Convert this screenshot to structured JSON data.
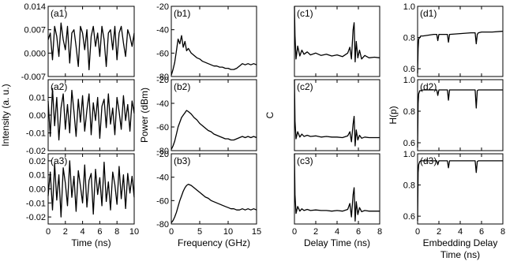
{
  "chart_data": [
    {
      "id": "a",
      "type": "line",
      "ylabel": "Intensity (a. u.)",
      "xlabel": "Time (ns)",
      "xlim": [
        0,
        10
      ],
      "x_ticks": [
        0,
        2,
        4,
        6,
        8,
        10
      ],
      "x_tick_labels": [
        "0",
        "2",
        "4",
        "6",
        "8",
        "10"
      ],
      "panels": [
        {
          "label": "(a1)",
          "ylim": [
            -0.007,
            0.014
          ],
          "y_ticks": [
            -0.007,
            0.0,
            0.007,
            0.014
          ],
          "y_tick_labels": [
            "-0.007",
            "0.000",
            "0.007",
            "0.014"
          ],
          "x": [
            0,
            0.25,
            0.5,
            0.75,
            1,
            1.25,
            1.5,
            1.75,
            2,
            2.25,
            2.5,
            2.75,
            3,
            3.25,
            3.5,
            3.75,
            4,
            4.25,
            4.5,
            4.75,
            5,
            5.25,
            5.5,
            5.75,
            6,
            6.25,
            6.5,
            6.75,
            7,
            7.25,
            7.5,
            7.75,
            8,
            8.25,
            8.5,
            8.75,
            9,
            9.25,
            9.5,
            9.75,
            10
          ],
          "y": [
            0.004,
            0.006,
            -0.002,
            0.008,
            0.005,
            -0.001,
            0.009,
            0.004,
            0.001,
            0.008,
            -0.003,
            0.006,
            0.007,
            0.002,
            -0.004,
            0.008,
            0.006,
            0.001,
            0.007,
            -0.005,
            0.005,
            0.008,
            0.002,
            0.006,
            -0.001,
            0.008,
            0.004,
            -0.004,
            0.006,
            0.007,
            0.001,
            0.008,
            -0.002,
            0.006,
            0.008,
            0.003,
            -0.001,
            0.007,
            0.005,
            0.002,
            0.006
          ]
        },
        {
          "label": "(a2)",
          "ylim": [
            -0.02,
            0.02
          ],
          "y_ticks": [
            -0.02,
            -0.01,
            0.0,
            0.01
          ],
          "y_tick_labels": [
            "-0.02",
            "-0.01",
            "0.00",
            "0.01"
          ],
          "x": [
            0,
            0.25,
            0.5,
            0.75,
            1,
            1.25,
            1.5,
            1.75,
            2,
            2.25,
            2.5,
            2.75,
            3,
            3.25,
            3.5,
            3.75,
            4,
            4.25,
            4.5,
            4.75,
            5,
            5.25,
            5.5,
            5.75,
            6,
            6.25,
            6.5,
            6.75,
            7,
            7.25,
            7.5,
            7.75,
            8,
            8.25,
            8.5,
            8.75,
            9,
            9.25,
            9.5,
            9.75,
            10
          ],
          "y": [
            0.008,
            -0.012,
            0.015,
            -0.006,
            0.01,
            -0.014,
            0.004,
            0.012,
            -0.008,
            0.006,
            -0.01,
            0.014,
            0.002,
            -0.012,
            0.009,
            -0.004,
            0.011,
            -0.009,
            0.003,
            0.012,
            -0.011,
            0.007,
            -0.003,
            0.01,
            -0.013,
            0.005,
            0.009,
            -0.007,
            0.012,
            -0.005,
            0.004,
            -0.011,
            0.01,
            0.002,
            -0.008,
            0.011,
            -0.003,
            0.006,
            -0.009,
            0.008,
            0.001
          ]
        },
        {
          "label": "(a3)",
          "ylim": [
            -0.025,
            0.025
          ],
          "y_ticks": [
            -0.02,
            -0.01,
            0.0,
            0.01,
            0.02
          ],
          "y_tick_labels": [
            "-0.02",
            "-0.01",
            "0.00",
            "0.01",
            "0.02"
          ],
          "x": [
            0,
            0.25,
            0.5,
            0.75,
            1,
            1.25,
            1.5,
            1.75,
            2,
            2.25,
            2.5,
            2.75,
            3,
            3.25,
            3.5,
            3.75,
            4,
            4.25,
            4.5,
            4.75,
            5,
            5.25,
            5.5,
            5.75,
            6,
            6.25,
            6.5,
            6.75,
            7,
            7.25,
            7.5,
            7.75,
            8,
            8.25,
            8.5,
            8.75,
            9,
            9.25,
            9.5,
            9.75,
            10
          ],
          "y": [
            -0.005,
            0.012,
            -0.015,
            0.018,
            -0.008,
            0.01,
            -0.02,
            0.015,
            0.004,
            -0.012,
            0.02,
            -0.006,
            0.009,
            -0.016,
            0.013,
            0.002,
            -0.01,
            0.017,
            -0.013,
            0.006,
            0.011,
            -0.018,
            0.014,
            -0.004,
            0.008,
            -0.012,
            0.019,
            -0.009,
            0.005,
            -0.015,
            0.012,
            0.003,
            -0.011,
            0.016,
            -0.007,
            0.01,
            -0.014,
            0.011,
            -0.003,
            0.009,
            -0.006
          ]
        }
      ]
    },
    {
      "id": "b",
      "type": "line",
      "ylabel": "Power (dBm)",
      "xlabel": "Frequency (GHz)",
      "xlim": [
        0,
        15
      ],
      "x_ticks": [
        0,
        5,
        10,
        15
      ],
      "x_tick_labels": [
        "0",
        "5",
        "10",
        "15"
      ],
      "panels": [
        {
          "label": "(b1)",
          "ylim": [
            -80,
            -20
          ],
          "y_ticks": [
            -80,
            -60,
            -40,
            -20
          ],
          "y_tick_labels": [
            "-80",
            "-60",
            "-40",
            "-20"
          ],
          "x": [
            0,
            0.3,
            0.6,
            0.9,
            1.2,
            1.5,
            1.8,
            2.1,
            2.4,
            2.7,
            3,
            3.5,
            4,
            4.5,
            5,
            5.5,
            6,
            6.5,
            7,
            7.5,
            8,
            8.5,
            9,
            9.5,
            10,
            10.5,
            11,
            11.5,
            12,
            12.5,
            13,
            13.5,
            14,
            14.5,
            15
          ],
          "y": [
            -79,
            -74,
            -68,
            -58,
            -48,
            -52,
            -45,
            -55,
            -50,
            -58,
            -56,
            -60,
            -62,
            -64,
            -65,
            -67,
            -68,
            -69,
            -70,
            -71,
            -71,
            -72,
            -72,
            -73,
            -73,
            -74,
            -74,
            -73,
            -71,
            -69,
            -70,
            -69,
            -70,
            -69,
            -70
          ]
        },
        {
          "label": "(b2)",
          "ylim": [
            -80,
            -20
          ],
          "y_ticks": [
            -80,
            -60,
            -40,
            -20
          ],
          "y_tick_labels": [
            "-80",
            "-60",
            "-40",
            "-20"
          ],
          "x": [
            0,
            0.3,
            0.6,
            0.9,
            1.2,
            1.5,
            1.8,
            2.1,
            2.4,
            2.7,
            3,
            3.5,
            4,
            4.5,
            5,
            5.5,
            6,
            6.5,
            7,
            7.5,
            8,
            8.5,
            9,
            9.5,
            10,
            10.5,
            11,
            11.5,
            12,
            12.5,
            13,
            13.5,
            14,
            14.5,
            15
          ],
          "y": [
            -79,
            -76,
            -72,
            -66,
            -60,
            -56,
            -52,
            -50,
            -48,
            -46,
            -47,
            -49,
            -52,
            -54,
            -57,
            -59,
            -61,
            -63,
            -64,
            -66,
            -67,
            -68,
            -69,
            -70,
            -70,
            -71,
            -71,
            -70,
            -69,
            -68,
            -69,
            -68,
            -69,
            -68,
            -69
          ]
        },
        {
          "label": "(b3)",
          "ylim": [
            -80,
            -20
          ],
          "y_ticks": [
            -80,
            -60,
            -40,
            -20
          ],
          "y_tick_labels": [
            "-80",
            "-60",
            "-40",
            "-20"
          ],
          "x": [
            0,
            0.3,
            0.6,
            0.9,
            1.2,
            1.5,
            1.8,
            2.1,
            2.4,
            2.7,
            3,
            3.5,
            4,
            4.5,
            5,
            5.5,
            6,
            6.5,
            7,
            7.5,
            8,
            8.5,
            9,
            9.5,
            10,
            10.5,
            11,
            11.5,
            12,
            12.5,
            13,
            13.5,
            14,
            14.5,
            15
          ],
          "y": [
            -79,
            -77,
            -74,
            -70,
            -65,
            -60,
            -56,
            -52,
            -49,
            -47,
            -46,
            -47,
            -49,
            -51,
            -53,
            -55,
            -57,
            -58,
            -60,
            -61,
            -62,
            -63,
            -64,
            -65,
            -66,
            -67,
            -67,
            -68,
            -68,
            -67,
            -68,
            -67,
            -68,
            -67,
            -68
          ]
        }
      ]
    },
    {
      "id": "c",
      "type": "line",
      "ylabel": "C",
      "xlabel": "Delay Time (ns)",
      "xlim": [
        0,
        8
      ],
      "x_ticks": [
        0,
        2,
        4,
        6,
        8
      ],
      "x_tick_labels": [
        "0",
        "2",
        "4",
        "6",
        "8"
      ],
      "panels": [
        {
          "label": "(c1)",
          "ylim": [
            -0.2,
            1.0
          ],
          "y_ticks": [],
          "y_tick_labels": [],
          "x": [
            0,
            0.05,
            0.15,
            0.3,
            0.5,
            0.7,
            0.9,
            1.2,
            1.5,
            2,
            2.5,
            3,
            3.5,
            4,
            4.5,
            5,
            5.2,
            5.35,
            5.5,
            5.6,
            5.7,
            5.8,
            5.95,
            6.1,
            6.3,
            6.6,
            7,
            7.5,
            8
          ],
          "y": [
            1.0,
            0.5,
            0.1,
            0.32,
            0.15,
            0.25,
            0.18,
            0.22,
            0.17,
            0.2,
            0.16,
            0.18,
            0.15,
            0.17,
            0.14,
            0.2,
            0.3,
            0.1,
            0.6,
            0.72,
            0.05,
            0.4,
            0.12,
            0.25,
            0.1,
            0.16,
            0.12,
            0.13,
            0.12
          ]
        },
        {
          "label": "(c2)",
          "ylim": [
            -0.2,
            1.0
          ],
          "y_ticks": [],
          "y_tick_labels": [],
          "x": [
            0,
            0.05,
            0.15,
            0.3,
            0.5,
            0.7,
            0.9,
            1.2,
            1.5,
            2,
            2.5,
            3,
            3.5,
            4,
            4.5,
            5,
            5.2,
            5.35,
            5.5,
            5.6,
            5.7,
            5.8,
            5.95,
            6.1,
            6.3,
            6.6,
            7,
            7.5,
            8
          ],
          "y": [
            1.0,
            0.3,
            0.0,
            0.12,
            0.03,
            0.08,
            0.04,
            0.06,
            0.04,
            0.05,
            0.03,
            0.04,
            0.03,
            0.03,
            0.02,
            0.05,
            0.12,
            -0.05,
            0.25,
            0.38,
            -0.12,
            0.15,
            -0.02,
            0.06,
            0.01,
            0.03,
            0.02,
            0.02,
            0.02
          ]
        },
        {
          "label": "(c3)",
          "ylim": [
            -0.2,
            1.0
          ],
          "y_ticks": [],
          "y_tick_labels": [],
          "x": [
            0,
            0.05,
            0.15,
            0.3,
            0.5,
            0.7,
            0.9,
            1.2,
            1.5,
            2,
            2.5,
            3,
            3.5,
            4,
            4.5,
            5,
            5.2,
            5.35,
            5.5,
            5.6,
            5.7,
            5.8,
            5.95,
            6.1,
            6.3,
            6.6,
            7,
            7.5,
            8
          ],
          "y": [
            1.0,
            0.3,
            -0.02,
            0.1,
            0.02,
            0.06,
            0.03,
            0.05,
            0.03,
            0.04,
            0.03,
            0.03,
            0.02,
            0.03,
            0.02,
            0.05,
            0.15,
            -0.08,
            0.3,
            0.42,
            -0.15,
            0.18,
            -0.04,
            0.08,
            0.01,
            0.03,
            0.02,
            0.02,
            0.02
          ]
        }
      ]
    },
    {
      "id": "d",
      "type": "line",
      "ylabel": "H(p)",
      "xlabel": "Embedding Delay",
      "xlabel_line2": "Time (ns)",
      "xlim": [
        0,
        8
      ],
      "x_ticks": [
        0,
        2,
        4,
        6,
        8
      ],
      "x_tick_labels": [
        "0",
        "2",
        "4",
        "6",
        "8"
      ],
      "panels": [
        {
          "label": "(d1)",
          "ylim": [
            0.55,
            1.0
          ],
          "y_ticks": [
            0.6,
            0.8,
            1.0
          ],
          "y_tick_labels": [
            "0.6",
            "0.8",
            "1.0"
          ],
          "x": [
            0,
            0.05,
            0.1,
            0.2,
            0.3,
            0.5,
            1,
            1.5,
            1.8,
            1.9,
            2.0,
            2.5,
            2.8,
            2.9,
            3.0,
            4,
            5,
            5.4,
            5.5,
            5.6,
            5.7,
            6,
            7,
            8
          ],
          "y": [
            0.57,
            0.73,
            0.79,
            0.8,
            0.81,
            0.81,
            0.815,
            0.82,
            0.82,
            0.78,
            0.82,
            0.82,
            0.82,
            0.77,
            0.82,
            0.825,
            0.83,
            0.83,
            0.76,
            0.82,
            0.83,
            0.835,
            0.835,
            0.84
          ]
        },
        {
          "label": "(d2)",
          "ylim": [
            0.55,
            1.0
          ],
          "y_ticks": [
            0.6,
            0.8,
            1.0
          ],
          "y_tick_labels": [
            "0.6",
            "0.8",
            "1.0"
          ],
          "x": [
            0,
            0.05,
            0.1,
            0.2,
            0.3,
            0.5,
            1,
            1.5,
            1.8,
            1.9,
            2.0,
            2.5,
            2.8,
            2.9,
            3.0,
            4,
            5,
            5.4,
            5.5,
            5.6,
            5.7,
            6,
            7,
            8
          ],
          "y": [
            0.57,
            0.85,
            0.91,
            0.93,
            0.93,
            0.935,
            0.935,
            0.935,
            0.935,
            0.9,
            0.935,
            0.935,
            0.935,
            0.87,
            0.935,
            0.935,
            0.935,
            0.935,
            0.82,
            0.93,
            0.935,
            0.935,
            0.935,
            0.935
          ]
        },
        {
          "label": "(d3)",
          "ylim": [
            0.55,
            1.0
          ],
          "y_ticks": [
            0.6,
            0.8,
            1.0
          ],
          "y_tick_labels": [
            "0.6",
            "0.8",
            "1.0"
          ],
          "x": [
            0,
            0.05,
            0.1,
            0.2,
            0.3,
            0.5,
            1,
            1.5,
            1.8,
            1.9,
            2.0,
            2.5,
            2.8,
            2.9,
            3.0,
            4,
            5,
            5.4,
            5.5,
            5.6,
            5.7,
            6,
            7,
            8
          ],
          "y": [
            0.57,
            0.88,
            0.93,
            0.95,
            0.955,
            0.955,
            0.955,
            0.955,
            0.955,
            0.93,
            0.955,
            0.955,
            0.955,
            0.91,
            0.955,
            0.955,
            0.955,
            0.955,
            0.88,
            0.95,
            0.955,
            0.955,
            0.955,
            0.955
          ]
        }
      ]
    }
  ]
}
